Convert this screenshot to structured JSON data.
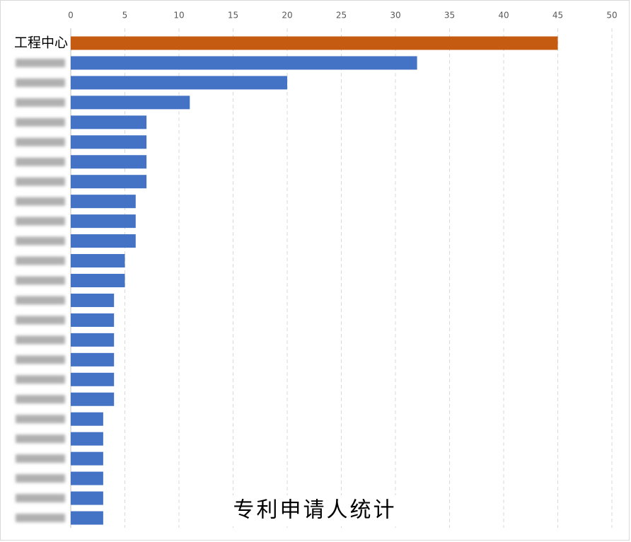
{
  "chart_data": {
    "type": "barh",
    "title": "专利申请人统计",
    "categories": [
      "工程中心",
      null,
      null,
      null,
      null,
      null,
      null,
      null,
      null,
      null,
      null,
      null,
      null,
      null,
      null,
      null,
      null,
      null,
      null,
      null,
      null,
      null,
      null,
      null,
      null
    ],
    "values": [
      45,
      32,
      20,
      11,
      7,
      7,
      7,
      7,
      6,
      6,
      6,
      5,
      5,
      4,
      4,
      4,
      4,
      4,
      4,
      3,
      3,
      3,
      3,
      3,
      3
    ],
    "colors": [
      "#c55a11",
      "#4472c4",
      "#4472c4",
      "#4472c4",
      "#4472c4",
      "#4472c4",
      "#4472c4",
      "#4472c4",
      "#4472c4",
      "#4472c4",
      "#4472c4",
      "#4472c4",
      "#4472c4",
      "#4472c4",
      "#4472c4",
      "#4472c4",
      "#4472c4",
      "#4472c4",
      "#4472c4",
      "#4472c4",
      "#4472c4",
      "#4472c4",
      "#4472c4",
      "#4472c4",
      "#4472c4"
    ],
    "xlim": [
      0,
      50
    ],
    "xticks": [
      0,
      5,
      10,
      15,
      20,
      25,
      30,
      35,
      40,
      45,
      50
    ],
    "grid": true
  }
}
